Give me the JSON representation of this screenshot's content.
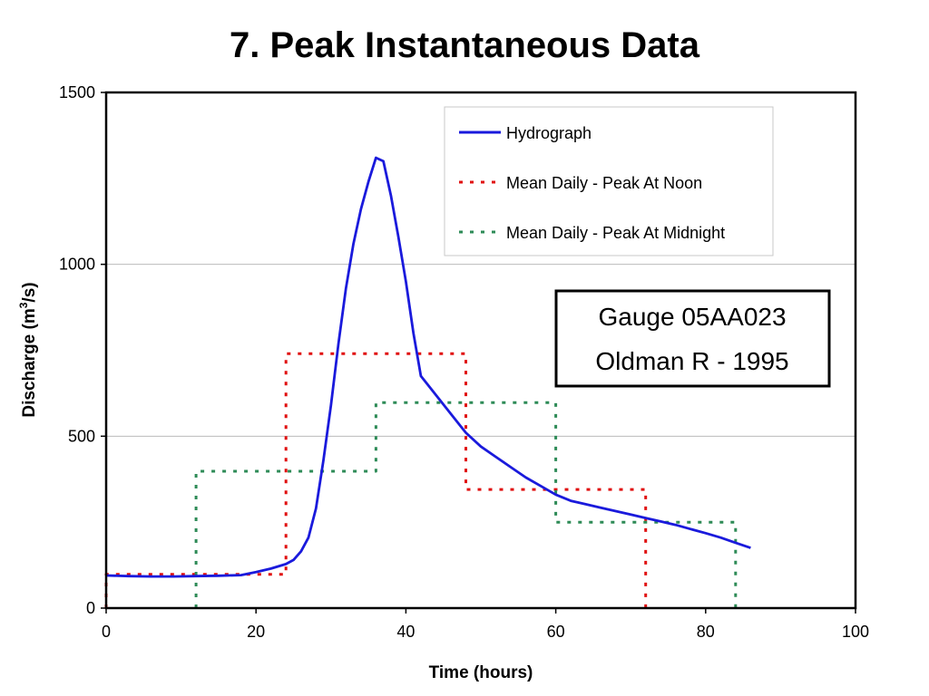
{
  "title": "7. Peak Instantaneous Data",
  "chart_data": {
    "type": "line",
    "title": "7. Peak Instantaneous Data",
    "xlabel": "Time (hours)",
    "ylabel_parts": [
      "Discharge (m",
      "3",
      "/s)"
    ],
    "xlim": [
      0,
      100
    ],
    "ylim": [
      0,
      1500
    ],
    "xticks": [
      0,
      20,
      40,
      60,
      80,
      100
    ],
    "yticks": [
      0,
      500,
      1000,
      1500
    ],
    "grid": "horizontal",
    "legend_position": "top-right",
    "series": [
      {
        "name": "Hydrograph",
        "style": "solid",
        "color": "#1a1adc",
        "x": [
          0,
          3,
          6,
          9,
          12,
          15,
          18,
          20,
          22,
          24,
          25,
          26,
          27,
          28,
          29,
          30,
          31,
          32,
          33,
          34,
          35,
          36,
          37,
          38,
          39,
          40,
          41,
          42,
          44,
          46,
          48,
          50,
          52,
          54,
          56,
          58,
          60,
          62,
          64,
          66,
          68,
          70,
          72,
          74,
          76,
          78,
          80,
          82,
          84,
          86
        ],
        "y": [
          95,
          93,
          92,
          92,
          93,
          94,
          96,
          105,
          115,
          128,
          140,
          165,
          205,
          290,
          430,
          590,
          770,
          930,
          1060,
          1160,
          1240,
          1310,
          1300,
          1200,
          1080,
          950,
          800,
          675,
          620,
          565,
          510,
          470,
          440,
          410,
          380,
          355,
          330,
          312,
          302,
          292,
          282,
          272,
          262,
          252,
          242,
          230,
          218,
          205,
          190,
          175
        ]
      },
      {
        "name": "Mean Daily - Peak At Noon",
        "style": "dashed",
        "color": "#e01010",
        "x": [
          0,
          0,
          24,
          24,
          48,
          48,
          72,
          72
        ],
        "y": [
          0,
          98,
          98,
          740,
          740,
          345,
          345,
          0
        ]
      },
      {
        "name": "Mean Daily - Peak At Midnight",
        "style": "dashed",
        "color": "#2e8b57",
        "x": [
          12,
          12,
          36,
          36,
          60,
          60,
          84,
          84
        ],
        "y": [
          0,
          398,
          398,
          598,
          598,
          250,
          250,
          0
        ]
      }
    ],
    "annotation": [
      "Gauge 05AA023",
      "Oldman R - 1995"
    ]
  }
}
